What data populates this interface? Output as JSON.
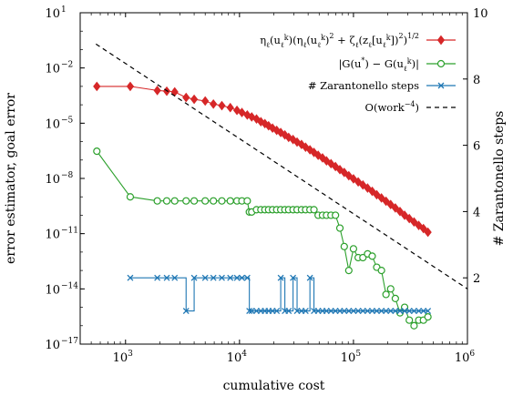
{
  "chart_data": {
    "type": "line",
    "xlabel": "cumulative cost",
    "ylabel_left": "error estimator, goal error",
    "ylabel_right": "# Zarantonello steps",
    "x_scale": "log",
    "y_scale": "log",
    "xlim": [
      400,
      1000000
    ],
    "ylim_left": [
      1e-17,
      10
    ],
    "ylim_right": [
      0,
      10
    ],
    "x_ticks": [
      {
        "value": 1000,
        "base": "10",
        "exp": "3"
      },
      {
        "value": 10000,
        "base": "10",
        "exp": "4"
      },
      {
        "value": 100000,
        "base": "10",
        "exp": "5"
      },
      {
        "value": 1000000,
        "base": "10",
        "exp": "6"
      }
    ],
    "y_ticks_left": [
      {
        "value": 10,
        "base": "10",
        "exp": "1"
      },
      {
        "value": 0.01,
        "base": "10",
        "exp": "−2"
      },
      {
        "value": 1e-05,
        "base": "10",
        "exp": "−5"
      },
      {
        "value": 1e-08,
        "base": "10",
        "exp": "−8"
      },
      {
        "value": 1e-11,
        "base": "10",
        "exp": "−11"
      },
      {
        "value": 1e-14,
        "base": "10",
        "exp": "−14"
      },
      {
        "value": 1e-17,
        "base": "10",
        "exp": "−17"
      }
    ],
    "y_ticks_right": [
      {
        "value": 2,
        "label": "2"
      },
      {
        "value": 4,
        "label": "4"
      },
      {
        "value": 6,
        "label": "6"
      },
      {
        "value": 8,
        "label": "8"
      },
      {
        "value": 10,
        "label": "10"
      }
    ],
    "legend_position": "top-right",
    "series": [
      {
        "name": "η_ℓ(u_ℓ^k)(η_ℓ(u_ℓ^k)^2 + ζ_ℓ(z_ℓ[u_ℓ^k])^2)^{1/2}",
        "axis": "left",
        "color": "#d62728",
        "marker": "diamond",
        "step": false,
        "x": [
          560,
          1100,
          1900,
          2300,
          2700,
          3400,
          4000,
          5000,
          5900,
          7000,
          8300,
          9500,
          10500,
          11700,
          12800,
          14100,
          15400,
          16700,
          18000,
          19500,
          21200,
          23000,
          25000,
          27000,
          29500,
          32000,
          35000,
          38000,
          41500,
          45000,
          49000,
          53500,
          58000,
          63500,
          69500,
          76000,
          83000,
          91000,
          100000,
          110000,
          121000,
          133000,
          146000,
          160000,
          176000,
          193000,
          212000,
          233000,
          256000,
          281000,
          309000,
          340000,
          374000,
          411000,
          450000
        ],
        "values": [
          0.001,
          0.001,
          0.0006,
          0.00055,
          0.0005,
          0.00025,
          0.0002,
          0.00016,
          0.00011,
          9e-05,
          7e-05,
          5e-05,
          3.8e-05,
          2.8e-05,
          2.2e-05,
          1.7e-05,
          1.2e-05,
          9.5e-06,
          7.2e-06,
          5.4e-06,
          4.1e-06,
          3.1e-06,
          2.3e-06,
          1.7e-06,
          1.3e-06,
          9.5e-07,
          7e-07,
          5e-07,
          3.6e-07,
          2.6e-07,
          1.8e-07,
          1.3e-07,
          9e-08,
          6.3e-08,
          4.4e-08,
          3e-08,
          2.1e-08,
          1.4e-08,
          9.5e-09,
          6.5e-09,
          4.4e-09,
          3e-09,
          2e-09,
          1.3e-09,
          8.7e-10,
          5.8e-10,
          3.8e-10,
          2.5e-10,
          1.6e-10,
          1e-10,
          6.6e-11,
          4.3e-11,
          2.8e-11,
          1.9e-11,
          1.2e-11
        ]
      },
      {
        "name": "|G(u*) − G(u_ℓ^k)|",
        "axis": "left",
        "color": "#2ca02c",
        "marker": "circle",
        "step": false,
        "x": [
          560,
          1100,
          1900,
          2300,
          2700,
          3400,
          4000,
          5000,
          5900,
          7000,
          8300,
          9500,
          10500,
          11700,
          12200,
          12800,
          14100,
          15400,
          16700,
          18000,
          19500,
          21200,
          23000,
          25000,
          27000,
          29500,
          32000,
          35000,
          38000,
          41500,
          45000,
          49000,
          53500,
          58000,
          63500,
          69500,
          76000,
          83000,
          91000,
          100000,
          110000,
          121000,
          133000,
          146000,
          160000,
          176000,
          193000,
          212000,
          233000,
          256000,
          281000,
          309000,
          340000,
          374000,
          411000,
          450000
        ],
        "values": [
          3e-07,
          1e-09,
          6e-10,
          6e-10,
          6e-10,
          6e-10,
          6e-10,
          6e-10,
          6e-10,
          6e-10,
          6e-10,
          6e-10,
          6e-10,
          6e-10,
          1.5e-10,
          1.5e-10,
          2e-10,
          2e-10,
          2e-10,
          2e-10,
          2e-10,
          2e-10,
          2e-10,
          2e-10,
          2e-10,
          2e-10,
          2e-10,
          2e-10,
          2e-10,
          2e-10,
          2e-10,
          1e-10,
          1e-10,
          1e-10,
          1e-10,
          1e-10,
          2e-11,
          2e-12,
          1e-13,
          1.5e-12,
          5e-13,
          5e-13,
          8e-13,
          6e-13,
          1.5e-13,
          1e-13,
          5e-15,
          1e-14,
          3e-15,
          5e-16,
          1e-15,
          2e-16,
          1e-16,
          2e-16,
          2e-16,
          3e-16
        ]
      },
      {
        "name": "# Zarantonello steps",
        "axis": "right",
        "color": "#1f77b4",
        "marker": "x",
        "step": true,
        "x": [
          1100,
          1900,
          2300,
          2700,
          3400,
          4000,
          5000,
          5900,
          7000,
          8300,
          9500,
          10500,
          11700,
          12200,
          12800,
          14100,
          15400,
          16700,
          18000,
          19500,
          21200,
          23000,
          25000,
          27000,
          29500,
          32000,
          35000,
          38000,
          41500,
          45000,
          49000,
          53500,
          58000,
          63500,
          69500,
          76000,
          83000,
          91000,
          100000,
          110000,
          121000,
          133000,
          146000,
          160000,
          176000,
          193000,
          212000,
          233000,
          256000,
          281000,
          309000,
          340000,
          374000,
          411000,
          450000
        ],
        "values": [
          2,
          2,
          2,
          2,
          1,
          2,
          2,
          2,
          2,
          2,
          2,
          2,
          2,
          1,
          1,
          1,
          1,
          1,
          1,
          1,
          1,
          2,
          1,
          1,
          2,
          1,
          1,
          1,
          2,
          1,
          1,
          1,
          1,
          1,
          1,
          1,
          1,
          1,
          1,
          1,
          1,
          1,
          1,
          1,
          1,
          1,
          1,
          1,
          1,
          1,
          1,
          1,
          1,
          1,
          1
        ]
      },
      {
        "name": "O(work^−4)",
        "axis": "left",
        "color": "#000000",
        "marker": "none",
        "dashed": true,
        "x": [
          550,
          1000000
        ],
        "values": [
          0.2,
          1e-14
        ]
      }
    ]
  }
}
